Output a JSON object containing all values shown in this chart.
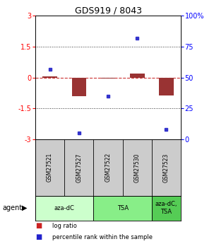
{
  "title": "GDS919 / 8043",
  "samples": [
    "GSM27521",
    "GSM27527",
    "GSM27522",
    "GSM27530",
    "GSM27523"
  ],
  "log_ratios": [
    0.05,
    -0.9,
    -0.05,
    0.2,
    -0.85
  ],
  "percentile_ranks": [
    57,
    5,
    35,
    82,
    8
  ],
  "ylim_left": [
    -3,
    3
  ],
  "ylim_right": [
    0,
    100
  ],
  "yticks_left": [
    -3,
    -1.5,
    0,
    1.5,
    3
  ],
  "ytick_labels_left": [
    "-3",
    "-1.5",
    "0",
    "1.5",
    "3"
  ],
  "yticks_right": [
    0,
    25,
    50,
    75,
    100
  ],
  "ytick_labels_right": [
    "0",
    "25",
    "50",
    "75",
    "100%"
  ],
  "bar_color": "#993333",
  "dot_color": "#3333cc",
  "zero_line_color": "#cc3333",
  "hline_color": "#333333",
  "agent_groups": [
    {
      "label": "aza-dC",
      "span": [
        0,
        2
      ],
      "color": "#ccffcc"
    },
    {
      "label": "TSA",
      "span": [
        2,
        4
      ],
      "color": "#88ee88"
    },
    {
      "label": "aza-dC,\nTSA",
      "span": [
        4,
        5
      ],
      "color": "#55cc55"
    }
  ],
  "legend_items": [
    {
      "color": "#cc2222",
      "label": "log ratio"
    },
    {
      "color": "#2222cc",
      "label": "percentile rank within the sample"
    }
  ],
  "sample_box_color": "#cccccc",
  "bar_width": 0.5
}
